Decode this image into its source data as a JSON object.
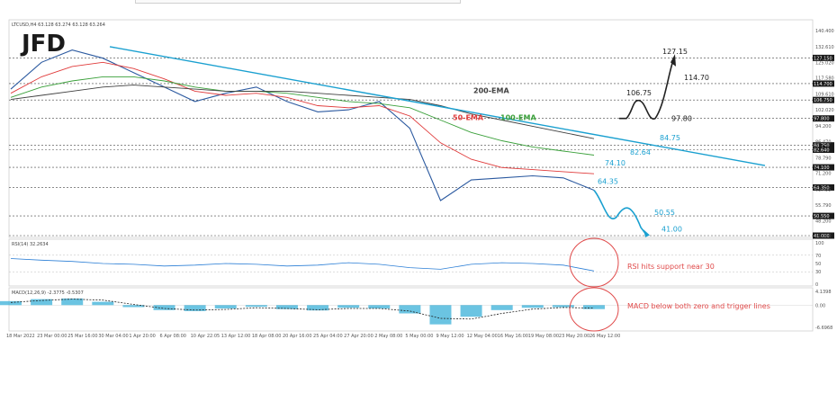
{
  "header": {
    "symbol_line": "LTCUSD,H4  63.128 63.274 63.128 63.264",
    "logo": "JFD"
  },
  "colors": {
    "price": "#2c5aa0",
    "ema50": "#e03b3b",
    "ema100": "#3aa03a",
    "ema200": "#404040",
    "trendline": "#1aa0d0",
    "projection_down": "#1aa0d0",
    "projection_up": "#222222",
    "highlight": "#e04a4a",
    "rsi": "#2c7fd6",
    "macd_hist": "#3ab0d8"
  },
  "chart_data": [
    {
      "type": "line",
      "title": "",
      "x": [
        "18 Mar 2022",
        "23 Mar 00:00",
        "25 Mar 16:00",
        "30 Mar 04:00",
        "1 Apr 20:00",
        "6 Apr 08:00",
        "10 Apr 22:05",
        "13 Apr 12:00",
        "18 Apr 08:00",
        "20 Apr 16:00",
        "25 Apr 04:00",
        "27 Apr 20:00",
        "2 May 08:00",
        "5 May 00:00",
        "9 May 12:00",
        "12 May 04:00",
        "16 May 16:00",
        "19 May 08:00",
        "23 May 20:00",
        "26 May 12:00"
      ],
      "y_ticks": [
        "140.400",
        "132.610",
        "125.020",
        "117.580",
        "109.610",
        "102.020",
        "94.200",
        "86.470",
        "78.790",
        "71.200",
        "63.455",
        "55.790",
        "48.200",
        "41.000"
      ],
      "ylim": [
        41,
        140.4
      ],
      "series": [
        {
          "name": "LTCUSD",
          "values": [
            112,
            125,
            131,
            127,
            120,
            113,
            106,
            110,
            113,
            106,
            101,
            102,
            106,
            93,
            58,
            68,
            69,
            70,
            69,
            63
          ]
        },
        {
          "name": "50-EMA",
          "values": [
            110,
            118,
            123,
            125,
            122,
            117,
            111,
            109,
            110,
            108,
            104,
            103,
            104,
            99,
            86,
            78,
            74,
            73,
            72,
            71
          ]
        },
        {
          "name": "100-EMA",
          "values": [
            108,
            113,
            116,
            118,
            118,
            116,
            113,
            111,
            111,
            110,
            108,
            106,
            105,
            103,
            97,
            91,
            87,
            84,
            82,
            80
          ]
        },
        {
          "name": "200-EMA",
          "values": [
            107,
            109,
            111,
            113,
            114,
            113,
            112,
            111,
            111,
            111,
            110,
            109,
            108,
            107,
            104,
            100,
            97,
            94,
            91,
            88
          ]
        }
      ],
      "levels": [
        {
          "label": "127.150",
          "value": 127.15
        },
        {
          "label": "114.700",
          "value": 114.7
        },
        {
          "label": "106.750",
          "value": 106.75
        },
        {
          "label": "97.800",
          "value": 97.8
        },
        {
          "label": "84.750",
          "value": 84.75
        },
        {
          "label": "82.640",
          "value": 82.64
        },
        {
          "label": "74.100",
          "value": 74.1
        },
        {
          "label": "64.350",
          "value": 64.35
        },
        {
          "label": "50.550",
          "value": 50.55
        },
        {
          "label": "41.000",
          "value": 41.0
        }
      ],
      "annotations": {
        "ema200": "200-EMA",
        "ema100": "100-EMA",
        "ema50": "50-EMA",
        "up_target": "127.15",
        "up_r1": "114.70",
        "up_s1": "106.75",
        "up_s2": "97.80",
        "r84": "84.75",
        "r82": "82.64",
        "r74": "74.10",
        "s64": "64.35",
        "s50": "50.55",
        "s41": "41.00"
      }
    },
    {
      "type": "line",
      "title": "RSI(14) 32.2634",
      "ylim": [
        0,
        100
      ],
      "y_ticks": [
        "100",
        "70",
        "50",
        "30",
        "0"
      ],
      "series": [
        {
          "name": "RSI(14)",
          "values": [
            62,
            58,
            55,
            50,
            48,
            44,
            46,
            50,
            48,
            44,
            46,
            52,
            48,
            40,
            36,
            48,
            52,
            50,
            46,
            32
          ]
        }
      ],
      "note": "RSI hits support near 30"
    },
    {
      "type": "bar",
      "title": "MACD(12,26,9) -2.3775 -0.5307",
      "ylim": [
        -6.6968,
        4.1398
      ],
      "y_ticks": [
        "4.1398",
        "0.00",
        "-6.6968"
      ],
      "histogram": [
        1.2,
        1.8,
        2.0,
        1.0,
        -0.6,
        -1.5,
        -1.8,
        -1.0,
        -0.5,
        -1.2,
        -1.6,
        -0.8,
        -1.0,
        -2.5,
        -5.8,
        -3.5,
        -1.5,
        -0.8,
        -0.6,
        -1.2
      ],
      "signal": [
        0.8,
        1.4,
        1.8,
        1.5,
        0.2,
        -1.0,
        -1.5,
        -1.3,
        -0.8,
        -1.0,
        -1.4,
        -1.0,
        -1.0,
        -1.8,
        -4.0,
        -4.2,
        -2.5,
        -1.2,
        -0.7,
        -0.9
      ],
      "note": "MACD below both zero and trigger lines"
    }
  ]
}
